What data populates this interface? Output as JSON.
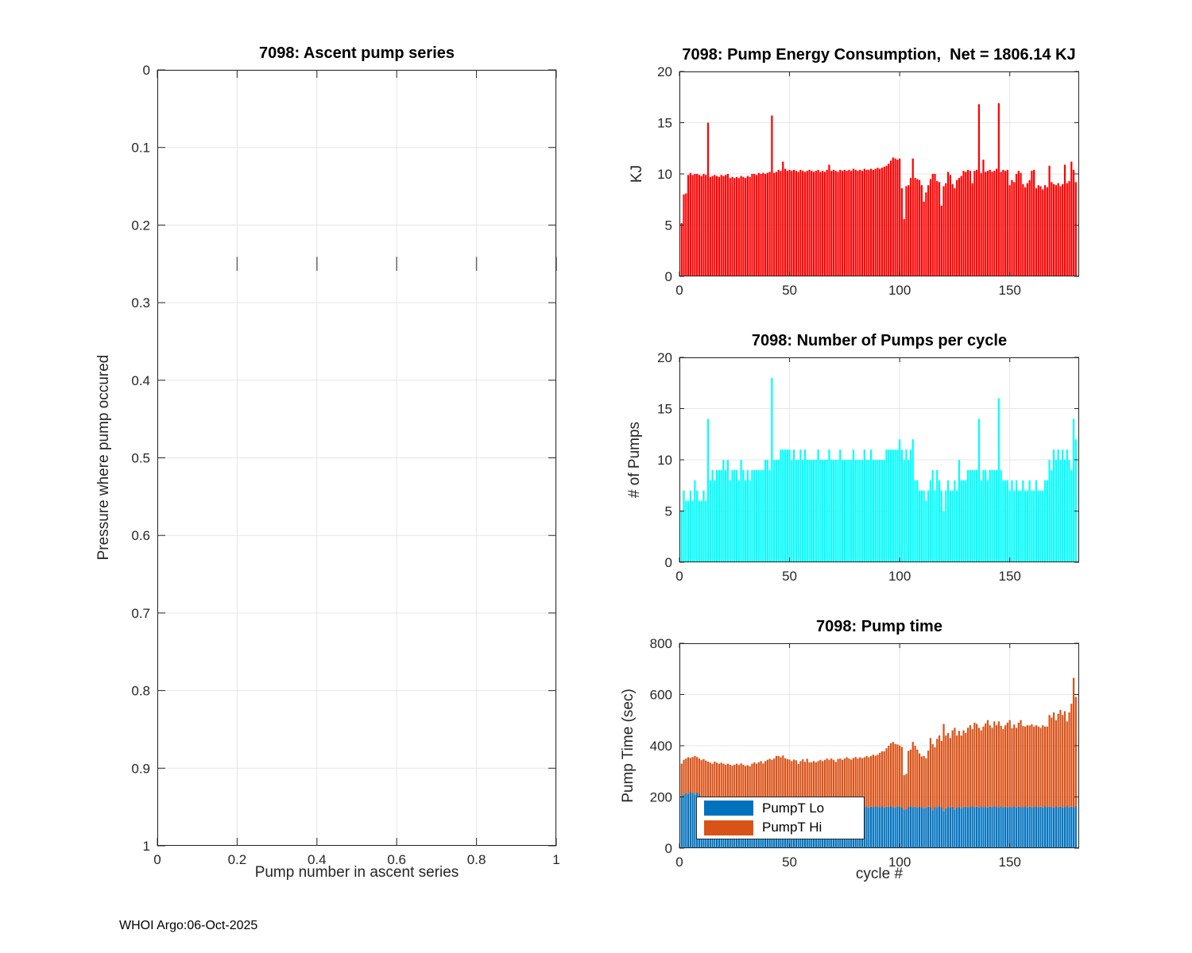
{
  "figure": {
    "footer": "WHOI Argo:06-Oct-2025"
  },
  "palette": {
    "energy": "#ff0000",
    "pumps": "#00ffff",
    "lo": "#0072bd",
    "hi": "#d95319",
    "grid": "#e6e6e6",
    "axis": "#262626",
    "inner_tick": "#666666"
  },
  "chart_data": [
    {
      "id": "ascent",
      "type": "bar",
      "title": "7098: Ascent pump series",
      "xlabel": "Pump number in ascent series",
      "ylabel": "Pressure where pump occured",
      "xlim": [
        0,
        1
      ],
      "ylim": [
        0,
        1
      ],
      "y_reversed": true,
      "grid": true,
      "xticks": [
        0,
        0.2,
        0.4,
        0.6,
        0.8,
        1
      ],
      "xtick_labels": [
        "0",
        "0.2",
        "0.4",
        "0.6",
        "0.8",
        "1"
      ],
      "yticks": [
        0,
        0.1,
        0.2,
        0.3,
        0.4,
        0.5,
        0.6,
        0.7,
        0.8,
        0.9,
        1
      ],
      "ytick_labels": [
        "0",
        "0.1",
        "0.2",
        "0.3",
        "0.4",
        "0.5",
        "0.6",
        "0.7",
        "0.8",
        "0.9",
        "1"
      ],
      "inner_xtick_y": [
        0.241,
        0.259
      ],
      "values": []
    },
    {
      "id": "energy",
      "type": "bar",
      "title": "7098: Pump Energy Consumption,  Net = 1806.14 KJ",
      "xlabel": "",
      "ylabel": "KJ",
      "color_key": "energy",
      "xlim": [
        0,
        181.5
      ],
      "ylim": [
        0,
        20
      ],
      "grid": true,
      "xticks": [
        0,
        50,
        100,
        150
      ],
      "xtick_labels": [
        "0",
        "50",
        "100",
        "150"
      ],
      "yticks": [
        0,
        5,
        10,
        15,
        20
      ],
      "ytick_labels": [
        "0",
        "5",
        "10",
        "15",
        "20"
      ],
      "values": [
        5.2,
        8.0,
        8.1,
        9.9,
        10.1,
        9.9,
        10.0,
        10.0,
        9.9,
        9.8,
        10.0,
        9.9,
        15.0,
        9.7,
        9.8,
        9.9,
        9.8,
        9.7,
        9.9,
        9.8,
        9.9,
        10.0,
        9.6,
        9.7,
        9.6,
        9.7,
        9.6,
        9.8,
        9.7,
        9.6,
        9.8,
        9.7,
        10.0,
        10.0,
        9.9,
        10.1,
        10.0,
        10.1,
        10.0,
        10.1,
        10.2,
        15.7,
        10.1,
        10.2,
        10.4,
        10.3,
        11.2,
        10.5,
        10.3,
        10.4,
        10.3,
        10.4,
        10.3,
        10.2,
        10.4,
        10.3,
        10.2,
        10.3,
        10.4,
        10.3,
        10.2,
        10.3,
        10.4,
        10.2,
        10.3,
        10.2,
        10.4,
        10.9,
        10.3,
        10.4,
        10.3,
        10.2,
        10.4,
        10.3,
        10.4,
        10.3,
        10.4,
        10.3,
        10.5,
        10.4,
        10.3,
        10.4,
        10.3,
        10.5,
        10.4,
        10.4,
        10.5,
        10.4,
        10.5,
        10.6,
        10.5,
        10.6,
        10.7,
        10.8,
        11.0,
        11.3,
        11.6,
        11.5,
        11.4,
        11.5,
        8.6,
        5.6,
        8.8,
        8.9,
        9.6,
        11.5,
        9.6,
        9.5,
        9.4,
        8.9,
        7.3,
        8.2,
        8.9,
        9.5,
        10.0,
        10.0,
        9.3,
        9.2,
        6.9,
        8.8,
        9.1,
        10.2,
        9.9,
        9.0,
        8.6,
        9.4,
        9.6,
        9.8,
        10.3,
        10.2,
        10.4,
        10.3,
        9.1,
        10.3,
        10.4,
        16.8,
        10.1,
        11.4,
        10.2,
        10.3,
        10.4,
        10.2,
        10.3,
        10.5,
        16.9,
        10.2,
        10.4,
        10.3,
        10.4,
        8.9,
        9.4,
        9.2,
        10.0,
        10.3,
        10.1,
        9.0,
        8.7,
        9.1,
        9.4,
        10.3,
        10.4,
        8.6,
        8.9,
        8.8,
        8.5,
        8.9,
        8.7,
        10.8,
        9.2,
        9.0,
        8.9,
        9.1,
        8.8,
        9.0,
        10.9,
        9.1,
        9.3,
        11.2,
        10.4,
        9.2
      ]
    },
    {
      "id": "pumps",
      "type": "bar",
      "title": "7098: Number of Pumps per cycle",
      "xlabel": "",
      "ylabel": "# of Pumps",
      "color_key": "pumps",
      "xlim": [
        0,
        181.5
      ],
      "ylim": [
        0,
        20
      ],
      "grid": true,
      "xticks": [
        0,
        50,
        100,
        150
      ],
      "xtick_labels": [
        "0",
        "50",
        "100",
        "150"
      ],
      "yticks": [
        0,
        5,
        10,
        15,
        20
      ],
      "ytick_labels": [
        "0",
        "5",
        "10",
        "15",
        "20"
      ],
      "values": [
        5,
        7,
        6,
        6,
        7,
        6,
        8,
        7,
        6,
        6,
        7,
        6,
        14,
        8,
        9,
        8,
        9,
        9,
        9,
        10,
        9,
        10,
        8,
        9,
        9,
        9,
        8,
        10,
        9,
        8,
        9,
        8,
        9,
        9,
        9,
        9,
        9,
        9,
        10,
        10,
        9,
        18,
        10,
        10,
        10,
        11,
        11,
        11,
        11,
        11,
        10,
        11,
        10,
        10,
        11,
        10,
        11,
        10,
        10,
        10,
        10,
        10,
        11,
        10,
        10,
        10,
        10,
        11,
        10,
        10,
        10,
        10,
        11,
        10,
        10,
        10,
        10,
        10,
        11,
        10,
        10,
        10,
        10,
        11,
        10,
        10,
        11,
        10,
        10,
        10,
        10,
        10,
        10,
        11,
        11,
        11,
        11,
        11,
        11,
        12,
        11,
        10,
        11,
        10,
        11,
        12,
        8,
        8,
        7,
        7,
        7,
        6,
        7,
        8,
        9,
        7,
        9,
        8,
        7,
        5,
        7,
        8,
        7,
        7,
        8,
        7,
        10,
        8,
        8,
        8,
        9,
        9,
        9,
        9,
        9,
        14,
        8,
        9,
        9,
        8,
        9,
        9,
        9,
        9,
        16,
        9,
        8,
        8,
        8,
        7,
        8,
        7,
        8,
        7,
        7,
        8,
        7,
        7,
        8,
        7,
        7,
        8,
        7,
        7,
        7,
        8,
        8,
        10,
        9,
        11,
        10,
        11,
        10,
        11,
        10,
        11,
        10,
        9,
        14,
        12
      ]
    },
    {
      "id": "pumptime",
      "type": "stacked",
      "title": "7098: Pump time",
      "xlabel": "cycle #",
      "ylabel": "Pump Time (sec)",
      "xlim": [
        0,
        181.5
      ],
      "ylim": [
        0,
        800
      ],
      "grid": true,
      "xticks": [
        0,
        50,
        100,
        150
      ],
      "xtick_labels": [
        "0",
        "50",
        "100",
        "150"
      ],
      "yticks": [
        0,
        200,
        400,
        600,
        800
      ],
      "ytick_labels": [
        "0",
        "200",
        "400",
        "600",
        "800"
      ],
      "legend_entries": [
        "PumpT Lo",
        "PumpT Hi"
      ],
      "series": [
        {
          "name": "PumpT Lo",
          "color_key": "lo",
          "values": [
            205,
            210,
            215,
            212,
            220,
            216,
            210,
            218,
            212,
            200,
            190,
            175,
            162,
            165,
            160,
            163,
            161,
            164,
            160,
            162,
            165,
            160,
            158,
            163,
            161,
            160,
            162,
            159,
            164,
            161,
            161,
            159,
            163,
            160,
            162,
            158,
            164,
            160,
            161,
            163,
            159,
            162,
            160,
            164,
            158,
            161,
            163,
            160,
            159,
            162,
            161,
            160,
            163,
            158,
            162,
            160,
            161,
            164,
            159,
            162,
            165,
            162,
            160,
            163,
            161,
            164,
            160,
            162,
            165,
            161,
            158,
            163,
            160,
            162,
            164,
            159,
            161,
            163,
            160,
            162,
            158,
            164,
            161,
            160,
            163,
            159,
            162,
            160,
            164,
            161,
            160,
            163,
            158,
            162,
            161,
            164,
            160,
            159,
            163,
            161,
            160,
            150,
            152,
            161,
            163,
            160,
            162,
            158,
            161,
            160,
            155,
            159,
            162,
            160,
            148,
            161,
            158,
            163,
            160,
            145,
            156,
            160,
            158,
            162,
            150,
            159,
            161,
            157,
            160,
            162,
            158,
            161,
            164,
            160,
            162,
            159,
            163,
            160,
            161,
            158,
            162,
            160,
            164,
            161,
            159,
            163,
            160,
            162,
            158,
            161,
            160,
            163,
            159,
            162,
            161,
            160,
            164,
            158,
            162,
            160,
            161,
            163,
            160,
            162,
            159,
            164,
            160,
            162,
            161,
            158,
            163,
            160,
            162,
            159,
            161,
            164,
            160,
            162,
            158,
            165
          ]
        },
        {
          "name": "PumpT Hi",
          "color_key": "hi",
          "values": [
            125,
            135,
            135,
            143,
            132,
            140,
            150,
            138,
            138,
            144,
            158,
            167,
            176,
            169,
            170,
            175,
            173,
            166,
            174,
            168,
            161,
            170,
            168,
            159,
            165,
            170,
            163,
            172,
            162,
            160,
            163,
            161,
            167,
            175,
            168,
            177,
            176,
            171,
            179,
            182,
            190,
            183,
            190,
            196,
            202,
            194,
            199,
            191,
            189,
            184,
            179,
            186,
            180,
            171,
            178,
            187,
            176,
            185,
            176,
            173,
            175,
            173,
            180,
            182,
            179,
            181,
            190,
            183,
            185,
            184,
            179,
            185,
            190,
            183,
            186,
            196,
            189,
            183,
            192,
            194,
            192,
            191,
            190,
            195,
            197,
            196,
            198,
            205,
            197,
            204,
            212,
            215,
            220,
            228,
            239,
            246,
            255,
            248,
            242,
            240,
            235,
            135,
            138,
            219,
            222,
            255,
            238,
            227,
            209,
            198,
            205,
            192,
            219,
            270,
            258,
            233,
            269,
            277,
            259,
            340,
            284,
            290,
            272,
            298,
            320,
            281,
            297,
            283,
            300,
            288,
            312,
            319,
            301,
            330,
            323,
            311,
            297,
            315,
            326,
            342,
            318,
            310,
            331,
            319,
            336,
            315,
            305,
            318,
            332,
            339,
            309,
            320,
            311,
            328,
            339,
            317,
            311,
            322,
            317,
            324,
            314,
            317,
            315,
            308,
            321,
            311,
            315,
            358,
            349,
            372,
            337,
            365,
            378,
            361,
            374,
            331,
            370,
            402,
            507,
            425
          ]
        }
      ]
    }
  ]
}
